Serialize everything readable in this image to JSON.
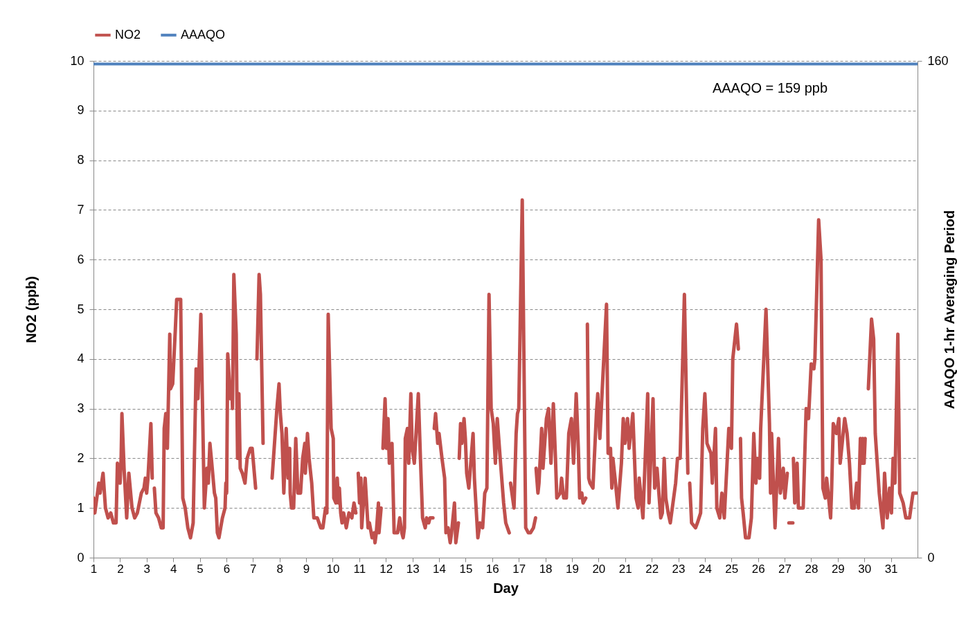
{
  "chart_data": {
    "type": "line",
    "xlabel": "Day",
    "ylabel": "NO2  (ppb)",
    "y2label": "AAAQO 1-hr Averaging Period",
    "annotations": [
      "AAAQO = 159 ppb"
    ],
    "xlim": [
      1,
      32
    ],
    "xticks": [
      1,
      2,
      3,
      4,
      5,
      6,
      7,
      8,
      9,
      10,
      11,
      12,
      13,
      14,
      15,
      16,
      17,
      18,
      19,
      20,
      21,
      22,
      23,
      24,
      25,
      26,
      27,
      28,
      29,
      30,
      31
    ],
    "ylim": [
      0,
      10
    ],
    "yticks": [
      0,
      1,
      2,
      3,
      4,
      5,
      6,
      7,
      8,
      9,
      10
    ],
    "y2lim": [
      0,
      160
    ],
    "y2ticks": [
      0,
      160
    ],
    "grid": "y",
    "legend": "top",
    "series": [
      {
        "name": "NO2",
        "color": "#c0504d",
        "x": [
          1.0,
          1.05,
          1.2,
          1.25,
          1.36,
          1.45,
          1.55,
          1.65,
          1.75,
          1.85,
          1.9,
          2.0,
          2.04,
          2.07,
          2.15,
          2.25,
          2.33,
          2.45,
          2.55,
          2.65,
          2.8,
          2.9,
          2.95,
          3.0,
          3.05,
          3.16,
          3.21,
          3.25,
          3.29,
          3.35,
          3.45,
          3.55,
          3.62,
          3.66,
          3.72,
          3.78,
          3.87,
          3.9,
          3.98,
          4.08,
          4.13,
          4.28,
          4.36,
          4.45,
          4.55,
          4.65,
          4.75,
          4.86,
          4.93,
          5.04,
          5.17,
          5.27,
          5.32,
          5.38,
          5.45,
          5.55,
          5.6,
          5.66,
          5.72,
          5.85,
          5.95,
          5.98,
          6.01,
          6.05,
          6.15,
          6.2,
          6.23,
          6.28,
          6.37,
          6.42,
          6.47,
          6.52,
          6.6,
          6.7,
          6.78,
          6.9,
          6.97,
          7.1,
          7.12,
          7.15,
          7.23,
          7.28,
          7.38,
          7.5,
          7.72,
          7.9,
          7.98,
          8.03,
          8.09,
          8.16,
          8.25,
          8.32,
          8.38,
          8.4,
          8.45,
          8.53,
          8.61,
          8.69,
          8.79,
          8.87,
          8.95,
          8.97,
          9.05,
          9.11,
          9.21,
          9.29,
          9.42,
          9.55,
          9.63,
          9.73,
          9.78,
          9.83,
          9.94,
          10.02,
          10.04,
          10.12,
          10.17,
          10.22,
          10.25,
          10.3,
          10.35,
          10.41,
          10.51,
          10.61,
          10.72,
          10.8,
          10.87,
          10.9,
          10.96,
          11.01,
          11.06,
          11.09,
          11.22,
          11.33,
          11.38,
          11.48,
          11.56,
          11.59,
          11.64,
          11.72,
          11.74,
          11.82,
          11.86,
          11.89,
          11.97,
          12.02,
          12.08,
          12.13,
          12.23,
          12.31,
          12.44,
          12.52,
          12.6,
          12.65,
          12.7,
          12.73,
          12.81,
          12.86,
          12.94,
          12.99,
          13.07,
          13.22,
          13.3,
          13.38,
          13.48,
          13.53,
          13.61,
          13.66,
          13.77,
          13.8,
          13.82,
          13.87,
          13.95,
          14.0,
          14.11,
          14.21,
          14.26,
          14.34,
          14.42,
          14.47,
          14.58,
          14.63,
          14.73,
          14.75,
          14.76,
          14.81,
          14.86,
          14.94,
          14.99,
          15.04,
          15.12,
          15.28,
          15.33,
          15.46,
          15.54,
          15.64,
          15.72,
          15.8,
          15.88,
          15.96,
          16.04,
          16.12,
          16.19,
          16.3,
          16.43,
          16.51,
          16.64,
          16.66,
          16.69,
          16.82,
          16.9,
          16.95,
          17.0,
          17.13,
          17.26,
          17.36,
          17.44,
          17.55,
          17.63,
          17.64,
          17.65,
          17.72,
          17.76,
          17.86,
          17.91,
          18.04,
          18.12,
          18.21,
          18.3,
          18.38,
          18.43,
          18.56,
          18.61,
          18.69,
          18.79,
          18.88,
          18.98,
          19.06,
          19.16,
          19.24,
          19.29,
          19.37,
          19.42,
          19.52,
          19.55,
          19.58,
          19.63,
          19.68,
          19.79,
          19.92,
          19.97,
          20.05,
          20.15,
          20.3,
          20.36,
          20.45,
          20.5,
          20.54,
          20.62,
          20.73,
          20.86,
          20.93,
          20.99,
          21.09,
          21.15,
          21.29,
          21.41,
          21.49,
          21.53,
          21.67,
          21.85,
          21.9,
          22.05,
          22.11,
          22.2,
          22.34,
          22.4,
          22.47,
          22.53,
          22.62,
          22.7,
          22.9,
          22.97,
          23.07,
          23.23,
          23.36,
          23.4,
          23.43,
          23.5,
          23.65,
          23.72,
          23.84,
          23.92,
          24.0,
          24.08,
          24.23,
          24.28,
          24.4,
          24.45,
          24.56,
          24.64,
          24.73,
          24.9,
          25.0,
          25.05,
          25.19,
          25.26,
          25.3,
          25.34,
          25.38,
          25.44,
          25.53,
          25.66,
          25.75,
          25.84,
          25.92,
          25.98,
          26.06,
          26.1,
          26.3,
          26.43,
          26.47,
          26.51,
          26.64,
          26.77,
          26.84,
          26.95,
          27.01,
          27.1,
          27.15,
          27.16,
          27.31,
          27.32,
          27.33,
          27.38,
          27.47,
          27.52,
          27.7,
          27.81,
          27.9,
          28.0,
          28.1,
          28.14,
          28.28,
          28.37,
          28.44,
          28.53,
          28.58,
          28.73,
          28.77,
          28.83,
          28.95,
          29.04,
          29.09,
          29.26,
          29.35,
          29.44,
          29.53,
          29.62,
          29.71,
          29.78,
          29.85,
          29.9,
          29.94,
          29.99,
          30.03,
          30.08,
          30.15,
          30.27,
          30.35,
          30.41,
          30.56,
          30.7,
          30.76,
          30.86,
          30.95,
          31.02,
          31.08,
          31.15,
          31.26,
          31.33,
          31.46,
          31.56,
          31.7,
          31.83,
          31.96
        ],
        "values": [
          1.2,
          0.9,
          1.5,
          1.3,
          1.7,
          1.0,
          0.8,
          0.9,
          0.7,
          0.7,
          1.9,
          1.5,
          2.0,
          2.9,
          1.8,
          0.8,
          1.7,
          1.0,
          0.8,
          0.9,
          1.3,
          1.4,
          1.6,
          1.3,
          1.6,
          2.7,
          1.6,
          null,
          1.4,
          0.9,
          0.8,
          0.6,
          0.6,
          2.6,
          2.9,
          2.2,
          4.5,
          3.4,
          3.5,
          4.6,
          5.2,
          5.2,
          1.2,
          1.0,
          0.6,
          0.4,
          0.7,
          3.8,
          3.2,
          4.9,
          1.0,
          1.8,
          1.5,
          2.3,
          1.9,
          1.3,
          1.2,
          0.5,
          0.4,
          0.8,
          1.0,
          1.5,
          1.3,
          4.1,
          3.2,
          3.5,
          3.0,
          5.7,
          4.5,
          2.0,
          3.3,
          1.8,
          1.7,
          1.5,
          2.0,
          2.2,
          2.2,
          1.4,
          null,
          4.0,
          5.7,
          5.3,
          2.3,
          null,
          1.6,
          3.0,
          3.5,
          2.9,
          2.5,
          1.3,
          2.6,
          1.6,
          2.2,
          1.3,
          1.0,
          1.0,
          2.4,
          1.3,
          1.3,
          2.0,
          2.3,
          1.7,
          2.5,
          2.0,
          1.5,
          0.8,
          0.8,
          0.6,
          0.6,
          1.0,
          0.9,
          4.9,
          2.6,
          2.4,
          1.2,
          1.1,
          1.6,
          1.1,
          1.4,
          0.9,
          0.7,
          0.9,
          0.6,
          0.9,
          0.8,
          1.1,
          0.9,
          null,
          1.7,
          1.1,
          1.6,
          0.6,
          1.6,
          0.6,
          0.7,
          0.4,
          0.5,
          0.3,
          0.5,
          1.1,
          0.5,
          1.0,
          null,
          2.2,
          3.2,
          2.2,
          2.8,
          1.9,
          2.3,
          0.5,
          0.5,
          0.8,
          0.5,
          0.4,
          0.6,
          2.4,
          2.6,
          1.9,
          3.3,
          2.2,
          1.9,
          3.3,
          2.0,
          0.8,
          0.6,
          0.8,
          0.7,
          0.8,
          0.8,
          null,
          2.6,
          2.9,
          2.3,
          2.5,
          2.0,
          1.6,
          0.5,
          0.6,
          0.3,
          0.5,
          1.1,
          0.3,
          0.7,
          null,
          2.0,
          2.7,
          2.3,
          2.8,
          2.4,
          1.7,
          1.4,
          2.5,
          1.6,
          0.4,
          0.7,
          0.6,
          1.3,
          1.4,
          5.3,
          3.0,
          2.7,
          1.9,
          2.8,
          2.0,
          1.1,
          0.7,
          0.5,
          null,
          1.5,
          1.0,
          2.5,
          2.9,
          3.0,
          7.2,
          0.6,
          0.5,
          0.5,
          0.6,
          0.8,
          null,
          1.8,
          1.3,
          1.5,
          2.6,
          1.8,
          2.8,
          3.0,
          1.9,
          3.1,
          2.0,
          1.2,
          1.3,
          1.6,
          1.2,
          1.2,
          2.5,
          2.8,
          1.9,
          3.3,
          2.2,
          1.2,
          1.3,
          1.1,
          1.2,
          null,
          4.7,
          1.6,
          1.5,
          1.4,
          2.9,
          3.3,
          2.4,
          3.5,
          5.1,
          2.1,
          2.2,
          1.4,
          2.0,
          1.6,
          1.0,
          1.9,
          2.8,
          2.3,
          2.8,
          2.2,
          2.9,
          1.2,
          1.0,
          1.6,
          0.8,
          3.3,
          1.1,
          3.2,
          1.4,
          1.8,
          0.8,
          0.9,
          2.0,
          1.2,
          0.9,
          0.7,
          1.5,
          2.0,
          2.0,
          5.3,
          1.7,
          null,
          1.5,
          0.7,
          0.6,
          0.7,
          0.9,
          2.6,
          3.3,
          2.3,
          2.1,
          1.5,
          2.6,
          1.0,
          0.8,
          1.3,
          0.8,
          2.6,
          2.2,
          4.0,
          4.7,
          4.2,
          null,
          2.4,
          1.2,
          0.9,
          0.4,
          0.4,
          0.8,
          2.5,
          1.5,
          2.0,
          1.6,
          2.6,
          5.0,
          2.7,
          1.3,
          2.5,
          0.6,
          2.4,
          1.3,
          1.8,
          1.2,
          1.7,
          null,
          0.7,
          0.7,
          null,
          2.0,
          1.1,
          1.9,
          1.0,
          1.0,
          3.0,
          2.8,
          3.9,
          3.8,
          4.0,
          6.8,
          6.0,
          1.4,
          1.2,
          1.6,
          0.8,
          1.4,
          2.7,
          2.5,
          2.8,
          1.9,
          2.8,
          2.5,
          1.9,
          1.0,
          1.0,
          1.5,
          1.0,
          2.4,
          1.9,
          2.4,
          1.9,
          2.4,
          null,
          3.4,
          4.8,
          4.4,
          2.5,
          1.3,
          0.6,
          1.7,
          0.8,
          1.4,
          0.9,
          2.0,
          1.5,
          4.5,
          1.3,
          1.1,
          0.8,
          0.8,
          1.3,
          1.3
        ]
      },
      {
        "name": "AAAQO",
        "color": "#4f81bd",
        "axis": "y2",
        "x": [
          1,
          32
        ],
        "values": [
          159,
          159
        ]
      }
    ]
  }
}
